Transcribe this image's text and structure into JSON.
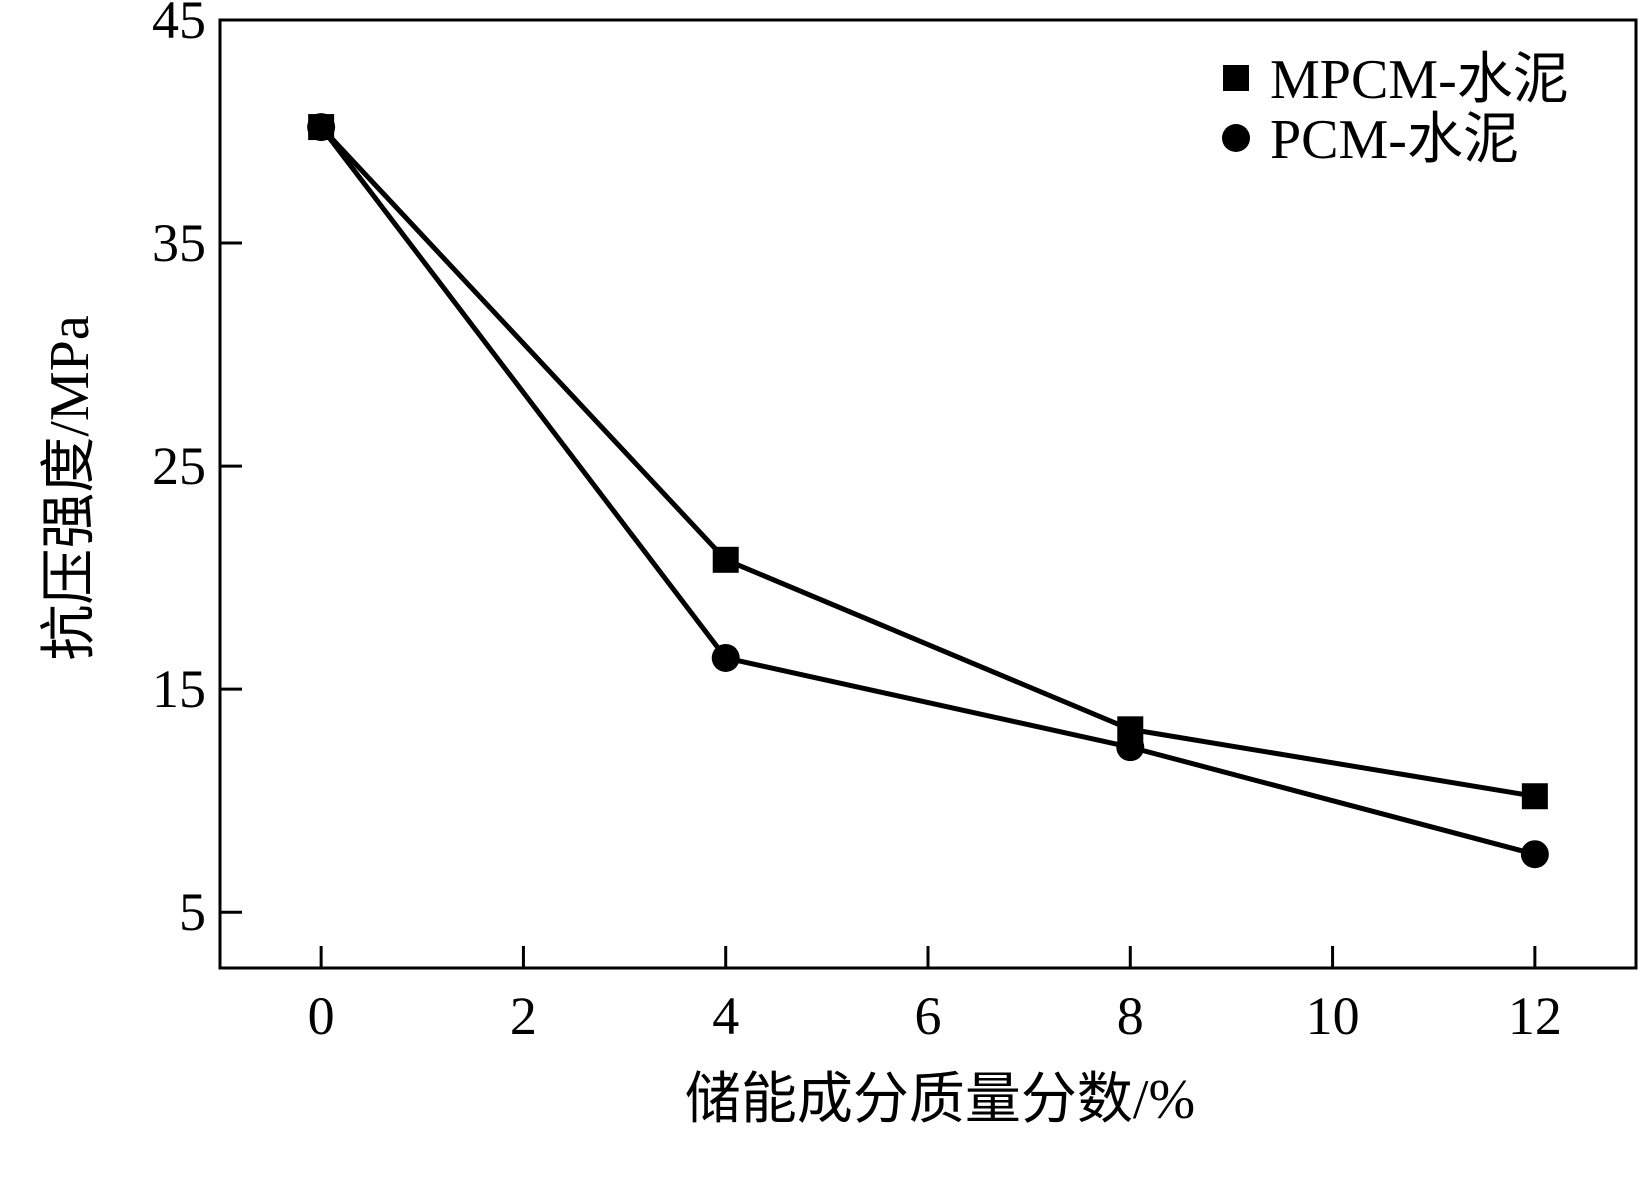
{
  "chart_data": {
    "type": "line",
    "title": "",
    "xlabel": "储能成分质量分数/%",
    "ylabel": "抗压强度/MPa",
    "xlim": [
      -1,
      13
    ],
    "ylim": [
      2.5,
      45
    ],
    "x_ticks": [
      0,
      2,
      4,
      6,
      8,
      10,
      12
    ],
    "y_ticks": [
      5,
      15,
      25,
      35,
      45
    ],
    "grid": false,
    "legend_position": "top-right",
    "series": [
      {
        "name": "MPCM-水泥",
        "marker": "square",
        "color": "#000000",
        "x": [
          0,
          4,
          8,
          12
        ],
        "y": [
          40.2,
          20.8,
          13.2,
          10.2
        ]
      },
      {
        "name": "PCM-水泥",
        "marker": "circle",
        "color": "#000000",
        "x": [
          0,
          4,
          8,
          12
        ],
        "y": [
          40.2,
          16.4,
          12.4,
          7.6
        ]
      }
    ]
  }
}
